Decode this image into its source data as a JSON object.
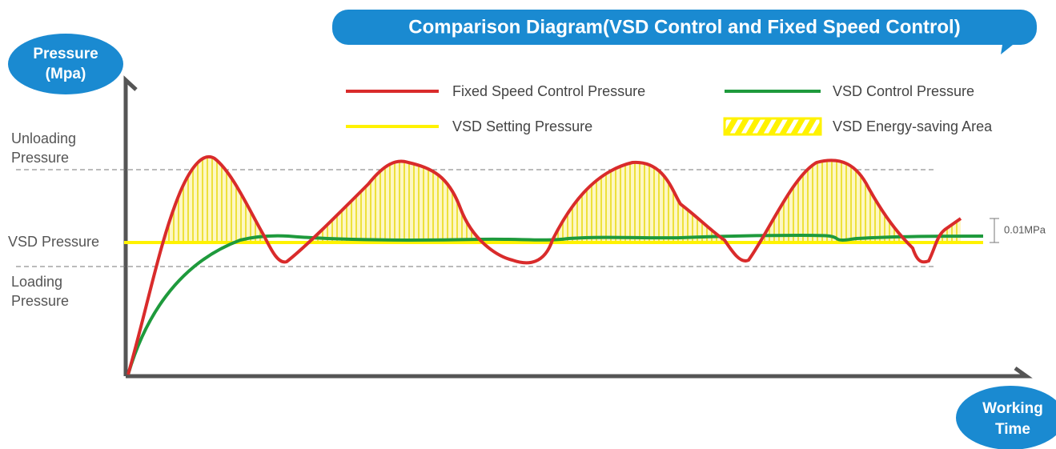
{
  "title": "Comparison Diagram(VSD Control and Fixed Speed Control)",
  "y_axis_label": [
    "Pressure",
    "(Mpa)"
  ],
  "x_axis_label": [
    "Working",
    "Time"
  ],
  "legend": [
    "Fixed Speed Control Pressure",
    "VSD Control Pressure",
    "VSD Setting Pressure",
    "VSD Energy-saving Area"
  ],
  "levels": {
    "unloading": [
      "Unloading",
      "Pressure"
    ],
    "vsd": "VSD Pressure",
    "loading": [
      "Loading",
      "Pressure"
    ]
  },
  "annotation": "0.01MPa"
}
